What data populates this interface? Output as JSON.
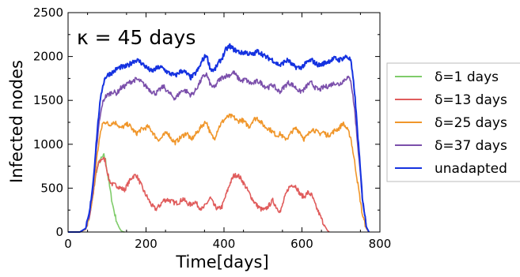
{
  "chart_data": {
    "type": "line",
    "xlabel": "Time[days]",
    "ylabel": "Infected nodes",
    "annotation": "κ = 45 days",
    "xlim": [
      0,
      800
    ],
    "ylim": [
      0,
      2500
    ],
    "xticks": [
      0,
      200,
      400,
      600,
      800
    ],
    "yticks": [
      0,
      500,
      1000,
      1500,
      2000,
      2500
    ],
    "grid": false,
    "legend_position": "outside-right",
    "series": [
      {
        "name": "δ=1 days",
        "color": "#7fcc6a",
        "x": [
          0,
          30,
          45,
          55,
          65,
          72,
          80,
          88,
          92,
          96,
          100,
          105,
          110,
          115,
          120,
          125,
          130,
          135,
          140,
          145
        ],
        "y": [
          0,
          0,
          30,
          180,
          450,
          680,
          800,
          850,
          870,
          820,
          700,
          560,
          420,
          300,
          200,
          120,
          60,
          20,
          5,
          0
        ]
      },
      {
        "name": "δ=13 days",
        "color": "#e05c5c",
        "x": [
          0,
          30,
          45,
          55,
          65,
          72,
          80,
          88,
          95,
          100,
          105,
          110,
          115,
          125,
          135,
          145,
          155,
          165,
          175,
          185,
          195,
          205,
          215,
          225,
          235,
          245,
          255,
          265,
          275,
          285,
          295,
          305,
          315,
          325,
          335,
          345,
          355,
          365,
          375,
          385,
          395,
          405,
          415,
          425,
          435,
          445,
          455,
          465,
          475,
          485,
          495,
          505,
          515,
          525,
          535,
          545,
          555,
          565,
          575,
          585,
          595,
          605,
          615,
          625,
          635,
          645,
          655,
          665,
          670
        ],
        "y": [
          0,
          0,
          30,
          180,
          450,
          680,
          800,
          840,
          820,
          700,
          600,
          560,
          540,
          530,
          500,
          480,
          560,
          630,
          650,
          560,
          460,
          380,
          300,
          260,
          300,
          360,
          370,
          350,
          330,
          340,
          380,
          330,
          310,
          350,
          290,
          260,
          320,
          390,
          300,
          260,
          290,
          420,
          550,
          640,
          650,
          600,
          520,
          440,
          360,
          300,
          260,
          250,
          300,
          360,
          280,
          230,
          380,
          500,
          540,
          520,
          430,
          400,
          450,
          420,
          300,
          200,
          100,
          20,
          0
        ]
      },
      {
        "name": "δ=25 days",
        "color": "#f0962a",
        "x": [
          0,
          30,
          45,
          55,
          65,
          72,
          80,
          88,
          95,
          105,
          115,
          125,
          135,
          145,
          155,
          165,
          175,
          185,
          195,
          205,
          215,
          225,
          235,
          245,
          255,
          265,
          275,
          285,
          295,
          305,
          315,
          325,
          335,
          345,
          355,
          365,
          375,
          385,
          395,
          405,
          415,
          425,
          435,
          445,
          455,
          465,
          475,
          485,
          495,
          505,
          515,
          525,
          535,
          545,
          555,
          565,
          575,
          585,
          595,
          605,
          615,
          625,
          635,
          645,
          655,
          665,
          675,
          685,
          695,
          705,
          715,
          725,
          735,
          745,
          755,
          765,
          772
        ],
        "y": [
          0,
          0,
          30,
          180,
          450,
          780,
          1050,
          1230,
          1260,
          1220,
          1250,
          1240,
          1180,
          1210,
          1230,
          1170,
          1120,
          1160,
          1180,
          1200,
          1150,
          1080,
          1050,
          1100,
          1140,
          1060,
          1020,
          1060,
          1100,
          1130,
          1050,
          1100,
          1160,
          1220,
          1260,
          1120,
          1060,
          1180,
          1250,
          1300,
          1320,
          1310,
          1260,
          1280,
          1240,
          1200,
          1280,
          1300,
          1250,
          1200,
          1180,
          1140,
          1100,
          1120,
          1060,
          1080,
          1150,
          1180,
          1140,
          1060,
          1100,
          1180,
          1150,
          1120,
          1140,
          1100,
          1120,
          1160,
          1180,
          1240,
          1180,
          1080,
          800,
          500,
          200,
          40,
          0
        ]
      },
      {
        "name": "δ=37 days",
        "color": "#7b4fab",
        "x": [
          0,
          30,
          45,
          55,
          65,
          72,
          80,
          88,
          95,
          105,
          115,
          125,
          135,
          145,
          155,
          165,
          175,
          185,
          195,
          205,
          215,
          225,
          235,
          245,
          255,
          265,
          275,
          285,
          295,
          305,
          315,
          325,
          335,
          345,
          355,
          365,
          375,
          385,
          395,
          405,
          415,
          425,
          435,
          445,
          455,
          465,
          475,
          485,
          495,
          505,
          515,
          525,
          535,
          545,
          555,
          565,
          575,
          585,
          595,
          605,
          615,
          625,
          635,
          645,
          655,
          665,
          675,
          685,
          695,
          705,
          715,
          725,
          735,
          745,
          755,
          765,
          772
        ],
        "y": [
          0,
          0,
          40,
          200,
          520,
          900,
          1250,
          1460,
          1540,
          1570,
          1600,
          1580,
          1640,
          1660,
          1700,
          1720,
          1740,
          1720,
          1680,
          1640,
          1600,
          1580,
          1620,
          1660,
          1600,
          1560,
          1520,
          1580,
          1620,
          1600,
          1560,
          1600,
          1680,
          1760,
          1800,
          1680,
          1640,
          1720,
          1760,
          1780,
          1790,
          1820,
          1760,
          1720,
          1740,
          1700,
          1690,
          1720,
          1700,
          1660,
          1650,
          1680,
          1620,
          1600,
          1660,
          1700,
          1680,
          1640,
          1600,
          1620,
          1680,
          1700,
          1640,
          1620,
          1650,
          1660,
          1680,
          1700,
          1680,
          1720,
          1760,
          1740,
          1400,
          900,
          400,
          60,
          0
        ]
      },
      {
        "name": "unadapted",
        "color": "#1532e0",
        "x": [
          0,
          30,
          45,
          55,
          65,
          72,
          80,
          88,
          95,
          105,
          115,
          125,
          135,
          145,
          155,
          165,
          175,
          185,
          195,
          205,
          215,
          225,
          235,
          245,
          255,
          265,
          275,
          285,
          295,
          305,
          315,
          325,
          335,
          345,
          355,
          365,
          375,
          385,
          395,
          405,
          415,
          425,
          435,
          445,
          455,
          465,
          475,
          485,
          495,
          505,
          515,
          525,
          535,
          545,
          555,
          565,
          575,
          585,
          595,
          605,
          615,
          625,
          635,
          645,
          655,
          665,
          675,
          685,
          695,
          705,
          715,
          725,
          735,
          745,
          755,
          765,
          772
        ],
        "y": [
          0,
          0,
          40,
          220,
          600,
          1000,
          1400,
          1650,
          1760,
          1800,
          1820,
          1860,
          1880,
          1880,
          1900,
          1940,
          1960,
          1940,
          1900,
          1860,
          1830,
          1860,
          1880,
          1860,
          1820,
          1800,
          1780,
          1820,
          1840,
          1800,
          1760,
          1800,
          1860,
          1960,
          2020,
          1860,
          1840,
          1920,
          1980,
          2080,
          2120,
          2080,
          2060,
          2040,
          2050,
          2030,
          2020,
          2060,
          2040,
          2000,
          1980,
          1960,
          1920,
          1900,
          1940,
          1960,
          1900,
          1880,
          1870,
          1900,
          1940,
          1960,
          1920,
          1900,
          1920,
          1940,
          1960,
          1980,
          1960,
          1980,
          2000,
          1960,
          1600,
          1000,
          400,
          60,
          0
        ]
      }
    ]
  }
}
